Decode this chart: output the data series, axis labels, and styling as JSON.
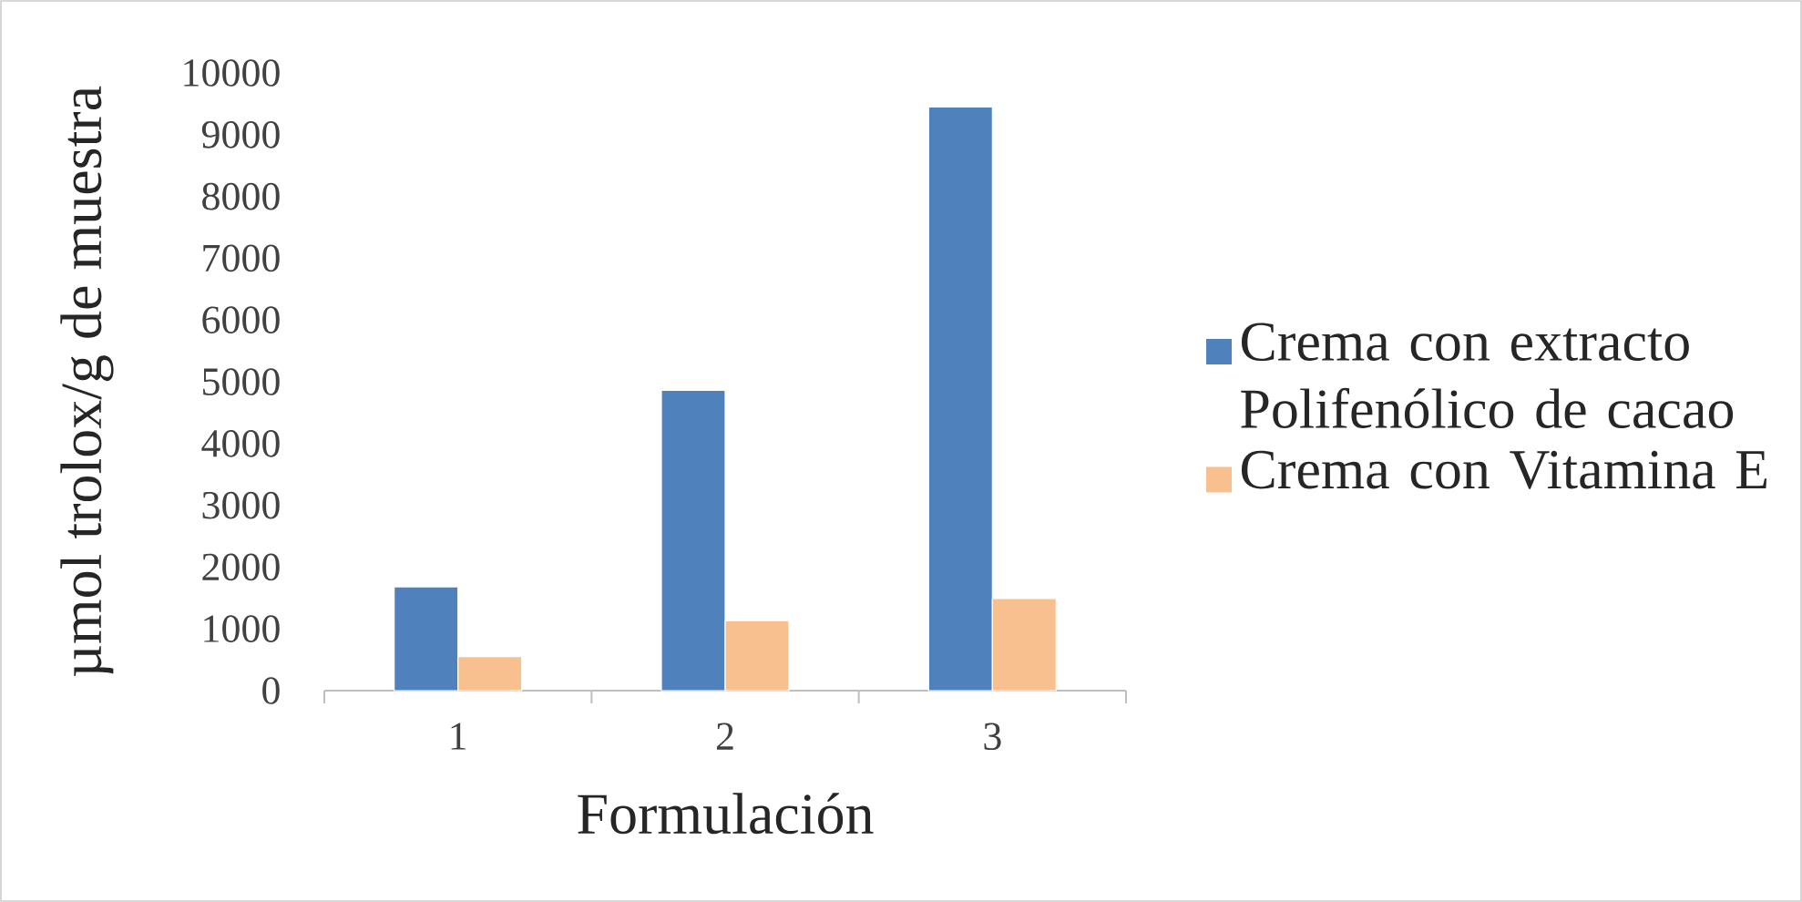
{
  "chart_data": {
    "type": "bar",
    "categories": [
      "1",
      "2",
      "3"
    ],
    "xlabel": "Formulación",
    "ylabel": "µmol trolox/g de muestra",
    "ylim": [
      0,
      10000
    ],
    "yticks": [
      0,
      1000,
      2000,
      3000,
      4000,
      5000,
      6000,
      7000,
      8000,
      9000,
      10000
    ],
    "legend": "right",
    "series": [
      {
        "name": "Crema con extracto Polifenólico de cacao",
        "color": "#4f81bd",
        "values": [
          1680,
          4860,
          9450
        ]
      },
      {
        "name": "Crema con Vitamina E",
        "color": "#f9c08f",
        "values": [
          550,
          1130,
          1490
        ]
      }
    ]
  }
}
